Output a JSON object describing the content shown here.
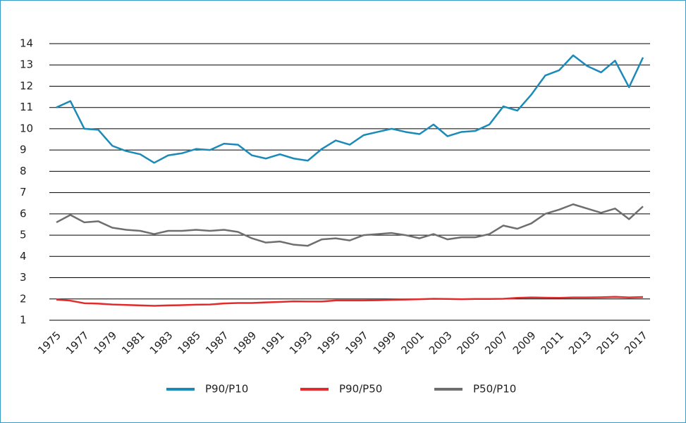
{
  "chart_data": {
    "type": "line",
    "x": [
      1975,
      1976,
      1977,
      1978,
      1979,
      1980,
      1981,
      1982,
      1983,
      1984,
      1985,
      1986,
      1987,
      1988,
      1989,
      1990,
      1991,
      1992,
      1993,
      1994,
      1995,
      1996,
      1997,
      1998,
      1999,
      2000,
      2001,
      2002,
      2003,
      2004,
      2005,
      2006,
      2007,
      2008,
      2009,
      2010,
      2011,
      2012,
      2013,
      2014,
      2015,
      2016,
      2017
    ],
    "xlim": [
      1975,
      2017
    ],
    "xticks": [
      1975,
      1977,
      1979,
      1981,
      1983,
      1985,
      1987,
      1989,
      1991,
      1993,
      1995,
      1997,
      1999,
      2001,
      2003,
      2005,
      2007,
      2009,
      2011,
      2013,
      2015,
      2017
    ],
    "ylim": [
      1,
      14
    ],
    "yticks": [
      1,
      2,
      3,
      4,
      5,
      6,
      7,
      8,
      9,
      10,
      11,
      12,
      13,
      14
    ],
    "grid": true,
    "legend": "bottom",
    "series": [
      {
        "name": "P90/P10",
        "color": "#1b8ab8",
        "values": [
          11.0,
          11.3,
          10.0,
          9.95,
          9.2,
          8.95,
          8.8,
          8.4,
          8.75,
          8.85,
          9.05,
          9.0,
          9.3,
          9.25,
          8.75,
          8.6,
          8.8,
          8.6,
          8.5,
          9.05,
          9.45,
          9.25,
          9.7,
          9.85,
          10.0,
          9.85,
          9.75,
          10.2,
          9.65,
          9.85,
          9.9,
          10.2,
          11.05,
          10.85,
          11.6,
          12.5,
          12.75,
          13.45,
          12.95,
          12.65,
          13.2,
          11.95,
          13.35
        ]
      },
      {
        "name": "P90/P50",
        "color": "#e32b2b",
        "values": [
          1.97,
          1.92,
          1.8,
          1.78,
          1.74,
          1.72,
          1.7,
          1.68,
          1.7,
          1.71,
          1.73,
          1.74,
          1.79,
          1.81,
          1.81,
          1.84,
          1.86,
          1.89,
          1.88,
          1.88,
          1.93,
          1.93,
          1.93,
          1.94,
          1.96,
          1.97,
          1.99,
          2.01,
          2.0,
          1.99,
          2.0,
          2.0,
          2.01,
          2.05,
          2.07,
          2.06,
          2.05,
          2.07,
          2.07,
          2.08,
          2.1,
          2.07,
          2.09
        ]
      },
      {
        "name": "P50/P10",
        "color": "#6e6e6e",
        "values": [
          5.6,
          5.95,
          5.6,
          5.65,
          5.35,
          5.25,
          5.2,
          5.05,
          5.2,
          5.2,
          5.25,
          5.2,
          5.25,
          5.15,
          4.85,
          4.65,
          4.7,
          4.55,
          4.5,
          4.8,
          4.85,
          4.75,
          5.0,
          5.05,
          5.1,
          5.0,
          4.85,
          5.05,
          4.8,
          4.9,
          4.9,
          5.05,
          5.45,
          5.3,
          5.55,
          6.0,
          6.2,
          6.45,
          6.25,
          6.05,
          6.25,
          5.75,
          6.35
        ]
      }
    ]
  }
}
